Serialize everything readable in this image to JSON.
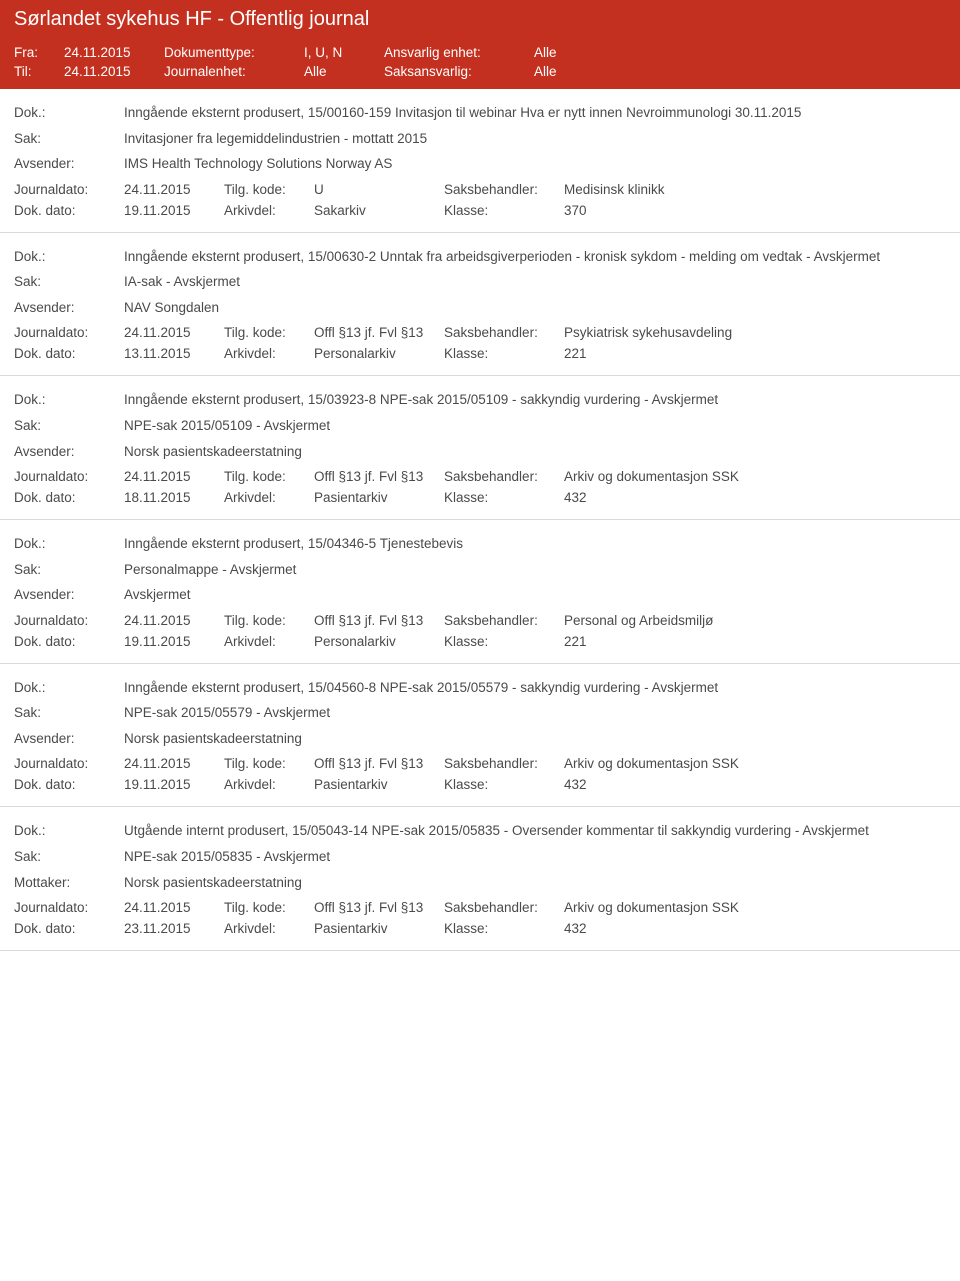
{
  "header": {
    "title": "Sørlandet sykehus HF - Offentlig journal",
    "fra_label": "Fra:",
    "fra_value": "24.11.2015",
    "til_label": "Til:",
    "til_value": "24.11.2015",
    "doktype_label": "Dokumenttype:",
    "doktype_value": "I, U, N",
    "journalenhet_label": "Journalenhet:",
    "journalenhet_value": "Alle",
    "ansvarlig_label": "Ansvarlig enhet:",
    "ansvarlig_value": "Alle",
    "saksansvarlig_label": "Saksansvarlig:",
    "saksansvarlig_value": "Alle"
  },
  "labels": {
    "dok": "Dok.:",
    "sak": "Sak:",
    "avsender": "Avsender:",
    "mottaker": "Mottaker:",
    "journaldato": "Journaldato:",
    "dokdato": "Dok. dato:",
    "tilgkode": "Tilg. kode:",
    "arkivdel": "Arkivdel:",
    "saksbehandler": "Saksbehandler:",
    "klasse": "Klasse:"
  },
  "entries": [
    {
      "dok": "Inngående eksternt produsert, 15/00160-159 Invitasjon til webinar Hva er nytt innen Nevroimmunologi 30.11.2015",
      "sak": "Invitasjoner fra legemiddelindustrien - mottatt 2015",
      "party_label": "Avsender:",
      "party": "IMS Health Technology Solutions Norway AS",
      "journaldato": "24.11.2015",
      "tilgkode": "U",
      "saksbehandler": "Medisinsk klinikk",
      "dokdato": "19.11.2015",
      "arkivdel": "Sakarkiv",
      "klasse": "370"
    },
    {
      "dok": "Inngående eksternt produsert, 15/00630-2 Unntak fra arbeidsgiverperioden - kronisk sykdom - melding om vedtak - Avskjermet",
      "sak": "IA-sak - Avskjermet",
      "party_label": "Avsender:",
      "party": "NAV Songdalen",
      "journaldato": "24.11.2015",
      "tilgkode": "Offl §13 jf. Fvl §13",
      "saksbehandler": "Psykiatrisk sykehusavdeling",
      "dokdato": "13.11.2015",
      "arkivdel": "Personalarkiv",
      "klasse": "221"
    },
    {
      "dok": "Inngående eksternt produsert, 15/03923-8 NPE-sak 2015/05109 - sakkyndig vurdering - Avskjermet",
      "sak": "NPE-sak 2015/05109 - Avskjermet",
      "party_label": "Avsender:",
      "party": "Norsk pasientskadeerstatning",
      "journaldato": "24.11.2015",
      "tilgkode": "Offl §13 jf. Fvl §13",
      "saksbehandler": "Arkiv og dokumentasjon SSK",
      "dokdato": "18.11.2015",
      "arkivdel": "Pasientarkiv",
      "klasse": "432"
    },
    {
      "dok": "Inngående eksternt produsert, 15/04346-5 Tjenestebevis",
      "sak": "Personalmappe - Avskjermet",
      "party_label": "Avsender:",
      "party": "Avskjermet",
      "journaldato": "24.11.2015",
      "tilgkode": "Offl §13 jf. Fvl §13",
      "saksbehandler": "Personal og Arbeidsmiljø",
      "dokdato": "19.11.2015",
      "arkivdel": "Personalarkiv",
      "klasse": "221"
    },
    {
      "dok": "Inngående eksternt produsert, 15/04560-8 NPE-sak 2015/05579 - sakkyndig vurdering - Avskjermet",
      "sak": "NPE-sak 2015/05579 - Avskjermet",
      "party_label": "Avsender:",
      "party": "Norsk pasientskadeerstatning",
      "journaldato": "24.11.2015",
      "tilgkode": "Offl §13 jf. Fvl §13",
      "saksbehandler": "Arkiv og dokumentasjon SSK",
      "dokdato": "19.11.2015",
      "arkivdel": "Pasientarkiv",
      "klasse": "432"
    },
    {
      "dok": "Utgående internt produsert, 15/05043-14 NPE-sak 2015/05835 - Oversender kommentar til sakkyndig vurdering - Avskjermet",
      "sak": "NPE-sak 2015/05835 - Avskjermet",
      "party_label": "Mottaker:",
      "party": "Norsk pasientskadeerstatning",
      "journaldato": "24.11.2015",
      "tilgkode": "Offl §13 jf. Fvl §13",
      "saksbehandler": "Arkiv og dokumentasjon SSK",
      "dokdato": "23.11.2015",
      "arkivdel": "Pasientarkiv",
      "klasse": "432"
    }
  ]
}
